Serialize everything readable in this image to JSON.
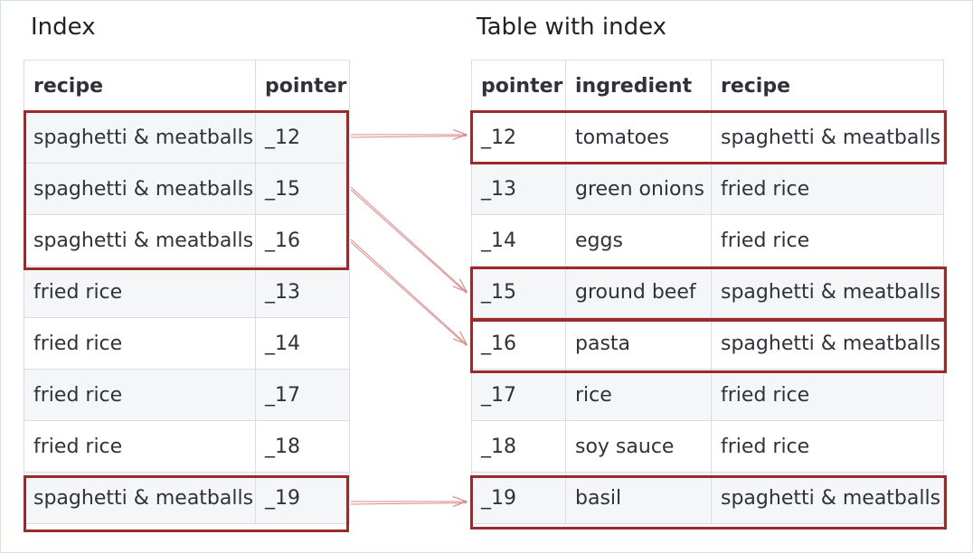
{
  "left": {
    "title": "Index",
    "headers": [
      "recipe",
      "pointer"
    ],
    "rows": [
      [
        "spaghetti & meatballs",
        "_12"
      ],
      [
        "spaghetti & meatballs",
        "_15"
      ],
      [
        "spaghetti & meatballs",
        "_16"
      ],
      [
        "fried rice",
        "_13"
      ],
      [
        "fried rice",
        "_14"
      ],
      [
        "fried rice",
        "_17"
      ],
      [
        "fried rice",
        "_18"
      ],
      [
        "spaghetti & meatballs",
        "_19"
      ]
    ]
  },
  "right": {
    "title": "Table with index",
    "headers": [
      "pointer",
      "ingredient",
      "recipe"
    ],
    "rows": [
      [
        "_12",
        "tomatoes",
        "spaghetti & meatballs"
      ],
      [
        "_13",
        "green onions",
        "fried rice"
      ],
      [
        "_14",
        "eggs",
        "fried rice"
      ],
      [
        "_15",
        "ground beef",
        "spaghetti & meatballs"
      ],
      [
        "_16",
        "pasta",
        "spaghetti & meatballs"
      ],
      [
        "_17",
        "rice",
        "fried rice"
      ],
      [
        "_18",
        "soy sauce",
        "fried rice"
      ],
      [
        "_19",
        "basil",
        "spaghetti & meatballs"
      ]
    ]
  },
  "links": [
    {
      "from": 0,
      "to": 0
    },
    {
      "from": 1,
      "to": 3
    },
    {
      "from": 2,
      "to": 4
    },
    {
      "from": 7,
      "to": 7
    }
  ],
  "colors": {
    "highlight": "#9b2a2a",
    "arrow": "#d98a8a"
  }
}
